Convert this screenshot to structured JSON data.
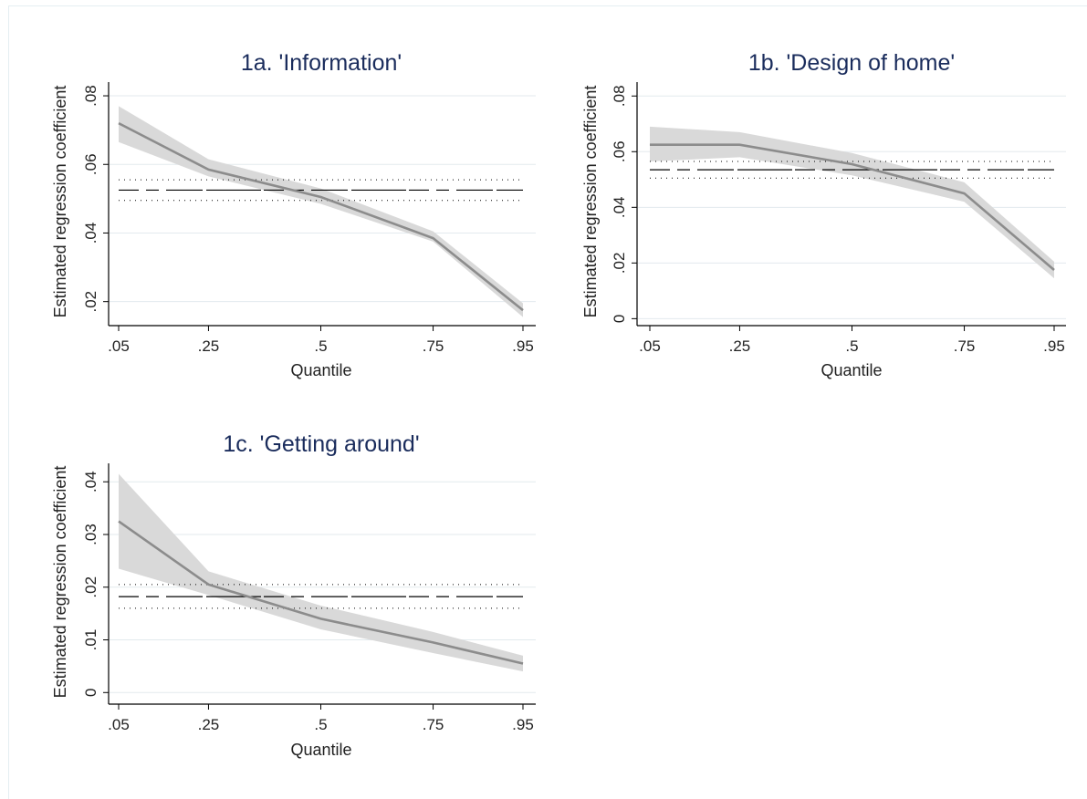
{
  "colors": {
    "title": "#1a2c5c",
    "text": "#222222",
    "axis": "#000000",
    "grid": "#e3eaee",
    "series_line": "#8c8c8c",
    "ci_band": "#d9d9d9",
    "ols_line": "#000000",
    "ols_ci": "#000000",
    "background": "#ffffff"
  },
  "chart_data": [
    {
      "id": "p1a",
      "type": "line",
      "title": "1a. 'Information'",
      "xlabel": "Quantile",
      "ylabel": "Estimated regression coefficient",
      "xticks": [
        ".05",
        ".25",
        ".5",
        ".75",
        ".95"
      ],
      "yticks": [
        ".02",
        ".04",
        ".06",
        ".08"
      ],
      "ylim": [
        0.013,
        0.084
      ],
      "grid": true,
      "series": [
        {
          "kind": "quantile-estimate",
          "x": [
            0.05,
            0.25,
            0.5,
            0.75,
            0.95
          ],
          "y": [
            0.072,
            0.0585,
            0.0505,
            0.0385,
            0.0175
          ],
          "lower": [
            0.0665,
            0.0565,
            0.0485,
            0.0375,
            0.0155
          ],
          "upper": [
            0.077,
            0.0615,
            0.053,
            0.0405,
            0.0195
          ]
        }
      ],
      "ols": {
        "estimate": 0.0525,
        "ci_lower": 0.0495,
        "ci_upper": 0.0555
      }
    },
    {
      "id": "p1b",
      "type": "line",
      "title": "1b. 'Design of home'",
      "xlabel": "Quantile",
      "ylabel": "Estimated regression coefficient",
      "xticks": [
        ".05",
        ".25",
        ".5",
        ".75",
        ".95"
      ],
      "yticks": [
        "0",
        ".02",
        ".04",
        ".06",
        ".08"
      ],
      "ylim": [
        -0.0025,
        0.085
      ],
      "grid": true,
      "series": [
        {
          "kind": "quantile-estimate",
          "x": [
            0.05,
            0.25,
            0.5,
            0.75,
            0.95
          ],
          "y": [
            0.0625,
            0.0625,
            0.0555,
            0.045,
            0.0175
          ],
          "lower": [
            0.0565,
            0.058,
            0.0515,
            0.042,
            0.0145
          ],
          "upper": [
            0.069,
            0.067,
            0.0595,
            0.049,
            0.0205
          ]
        }
      ],
      "ols": {
        "estimate": 0.0535,
        "ci_lower": 0.0505,
        "ci_upper": 0.0565
      }
    },
    {
      "id": "p1c",
      "type": "line",
      "title": "1c. 'Getting around'",
      "xlabel": "Quantile",
      "ylabel": "Estimated regression coefficient",
      "xticks": [
        ".05",
        ".25",
        ".5",
        ".75",
        ".95"
      ],
      "yticks": [
        "0",
        ".01",
        ".02",
        ".03",
        ".04"
      ],
      "ylim": [
        -0.0022,
        0.0435
      ],
      "grid": true,
      "series": [
        {
          "kind": "quantile-estimate",
          "x": [
            0.05,
            0.25,
            0.5,
            0.75,
            0.95
          ],
          "y": [
            0.0325,
            0.0205,
            0.014,
            0.0095,
            0.0055
          ],
          "lower": [
            0.0235,
            0.0185,
            0.012,
            0.0075,
            0.004
          ],
          "upper": [
            0.0415,
            0.023,
            0.0165,
            0.0115,
            0.007
          ]
        }
      ],
      "ols": {
        "estimate": 0.0182,
        "ci_lower": 0.016,
        "ci_upper": 0.0205
      }
    }
  ]
}
